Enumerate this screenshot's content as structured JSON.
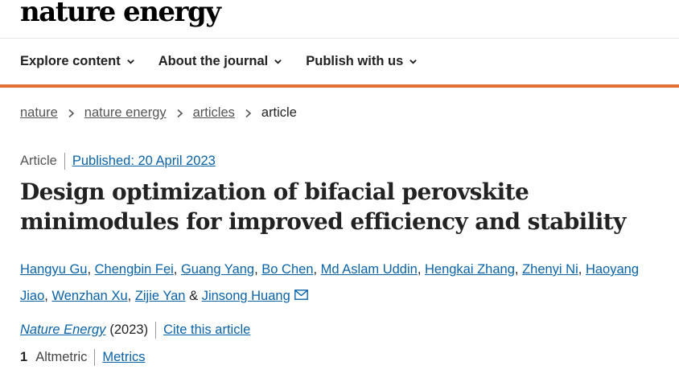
{
  "brand": {
    "logo_text": "nature energy"
  },
  "nav": {
    "items": [
      {
        "label": "Explore content"
      },
      {
        "label": "About the journal"
      },
      {
        "label": "Publish with us"
      }
    ]
  },
  "colors": {
    "accent_bar": "#e36f35",
    "link": "#0a62a8"
  },
  "breadcrumb": {
    "items": [
      "nature",
      "nature energy",
      "articles"
    ],
    "current": "article"
  },
  "article": {
    "type": "Article",
    "published": "Published: 20 April 2023",
    "title_line1": "Design optimization of bifacial perovskite",
    "title_line2": "minimodules for improved efficiency and stability",
    "authors": [
      "Hangyu Gu",
      "Chengbin Fei",
      "Guang Yang",
      "Bo Chen",
      "Md Aslam Uddin",
      "Hengkai Zhang",
      "Zhenyi Ni",
      "Haoyang Jiao",
      "Wenzhan Xu",
      "Zijie Yan",
      "Jinsong Huang"
    ],
    "separator": ", ",
    "last_separator": " & ",
    "journal": "Nature Energy",
    "year": "(2023)",
    "cite_label": "Cite this article",
    "altmetric_score": "1",
    "altmetric_label": "Altmetric",
    "metrics_label": "Metrics"
  }
}
